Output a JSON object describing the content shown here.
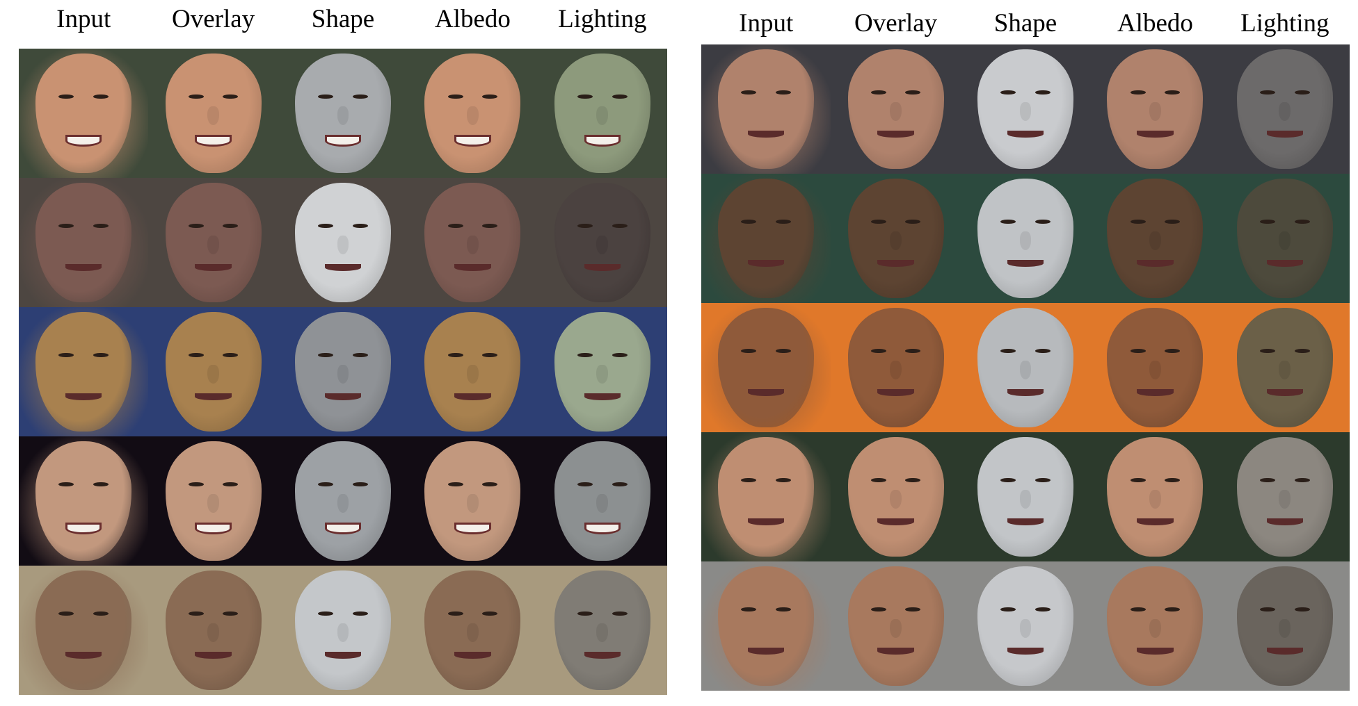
{
  "panels": [
    {
      "headers": [
        "Input",
        "Overlay",
        "Shape",
        "Albedo",
        "Lighting"
      ],
      "rows": [
        {
          "bg": "#3f4a3a",
          "skin": "#c99272",
          "shape": "#a8abae",
          "light": "#8d9a7c",
          "mouth": "open"
        },
        {
          "bg": "#4d4641",
          "skin": "#7c5a52",
          "shape": "#d0d2d4",
          "light": "#4b4240",
          "mouth": "closed"
        },
        {
          "bg": "#2d3f74",
          "skin": "#a8814f",
          "shape": "#8f9296",
          "light": "#9aa88e",
          "mouth": "closed"
        },
        {
          "bg": "#120c14",
          "skin": "#c2987e",
          "shape": "#9da1a5",
          "light": "#8c9091",
          "mouth": "open"
        },
        {
          "bg": "#a89a7e",
          "skin": "#8a6b54",
          "shape": "#c4c7ca",
          "light": "#807c75",
          "mouth": "closed"
        }
      ]
    },
    {
      "headers": [
        "Input",
        "Overlay",
        "Shape",
        "Albedo",
        "Lighting"
      ],
      "rows": [
        {
          "bg": "#3c3c42",
          "skin": "#b0826c",
          "shape": "#c9cbce",
          "light": "#6c6a6a",
          "mouth": "closed"
        },
        {
          "bg": "#2c4a3e",
          "skin": "#5d4432",
          "shape": "#c0c3c6",
          "light": "#4d4a3c",
          "mouth": "closed"
        },
        {
          "bg": "#e0782a",
          "skin": "#8f5a3a",
          "shape": "#b7babd",
          "light": "#6b6048",
          "mouth": "closed"
        },
        {
          "bg": "#2c3a2c",
          "skin": "#bf8e72",
          "shape": "#c2c5c8",
          "light": "#8c8780",
          "mouth": "closed"
        },
        {
          "bg": "#8a8a88",
          "skin": "#a8795e",
          "shape": "#c6c8cb",
          "light": "#6a645d",
          "mouth": "closed"
        }
      ]
    }
  ]
}
